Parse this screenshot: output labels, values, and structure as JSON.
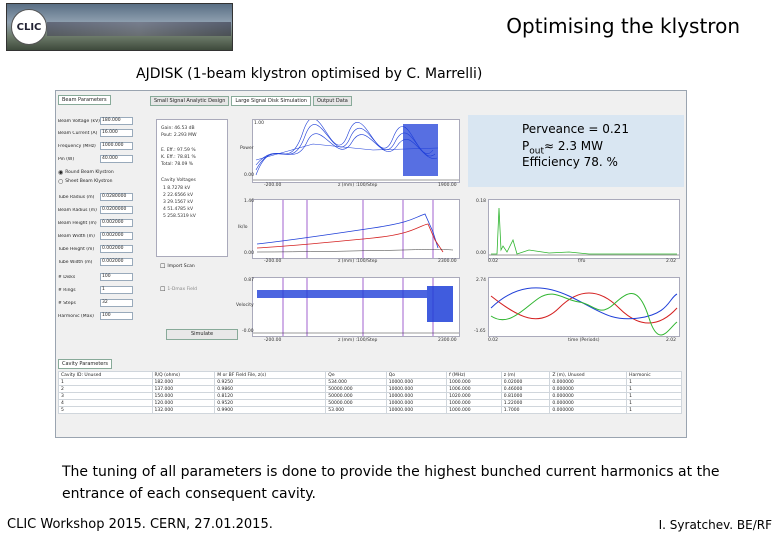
{
  "header": {
    "logo_text": "CLIC",
    "title": "Optimising the klystron"
  },
  "subtitle": "AJDISK (1-beam klystron optimised by C. Marrelli)",
  "app": {
    "left_tab": "Beam Parameters",
    "top_tabs": [
      "Small Signal Analytic Design",
      "Large Signal Disk Simulation",
      "Output Data"
    ],
    "fields": [
      {
        "label": "Beam Voltage (kV)",
        "value": "180.000"
      },
      {
        "label": "Beam Current (A)",
        "value": "16.000"
      },
      {
        "label": "Frequency (MHz)",
        "value": "1000.000"
      },
      {
        "label": "Pin (W)",
        "value": "40.000"
      },
      {
        "label": "Tube Radius (m)",
        "value": "0.0280000"
      },
      {
        "label": "Beam Radius (m)",
        "value": "0.0200000"
      },
      {
        "label": "Beam Height (m)",
        "value": "0.002000"
      },
      {
        "label": "Beam Width (m)",
        "value": "0.002000"
      },
      {
        "label": "Tube Height (m)",
        "value": "0.002000"
      },
      {
        "label": "Tube Width (m)",
        "value": "0.002000"
      },
      {
        "label": "# Disks",
        "value": "100"
      },
      {
        "label": "# Rings",
        "value": "1"
      },
      {
        "label": "# Steps",
        "value": "32"
      },
      {
        "label": "Harmonic (Max)",
        "value": "100"
      }
    ],
    "radio_round": "Round Beam Klystron",
    "radio_sheet": "Sheet Beam Klystron",
    "results": {
      "gain": "Gain: 46.53 dB",
      "pout": "Pout: 2.293 MW",
      "e_eff": "E. Eff.: 97.59 %",
      "k_eff": "K. Eff.: 78.81 %",
      "total": "Total: 78.09 %",
      "cavity_header": "Cavity Voltages",
      "voltages": [
        "1  8.7278 kV",
        "2  22.6566 kV",
        "3  29.1567 kV",
        "4  51.4785 kV",
        "5  258.5319 kV"
      ]
    },
    "checkbox_1": "Import Scan",
    "checkbox_2": "1-Dmax Field",
    "simulate_button": "Simulate",
    "plot_axes": {
      "p1": {
        "y_top": "1.00",
        "y_bot": "0.00",
        "x_left": "-200.00",
        "x_mid": "z (mm) :100/Step",
        "x_right": "1900.00"
      },
      "p2": {
        "y_top": "1.46",
        "y_bot": "0.00",
        "x_left": "-200.00",
        "x_mid": "z (mm) :100/Step",
        "x_right": "2300.00"
      },
      "p3": {
        "y_top": "0.87",
        "y_bot": "-0.00",
        "x_left": "-200.00",
        "x_mid": "z (mm) :100/Step",
        "x_right": "2300.00"
      },
      "p4": {
        "label": "Jamplitude: 5%/100",
        "y_top": "0.18",
        "y_bot": "0.00",
        "x_left": "0.02",
        "x_mid": "f/fo",
        "x_right": "2.02"
      },
      "p5": {
        "y_top": "2.74",
        "y_bot": "-1.65",
        "x_left": "0.02",
        "x_mid": "time (Periods)",
        "x_right": "2.02"
      }
    },
    "cavity_tab": "Cavity Parameters",
    "cavity_columns": [
      "Cavity ID: Unused",
      "R/Q (ohms)",
      "M or BF Field File, z(s)",
      "Qe",
      "Qo",
      "f (MHz)",
      "z (m)",
      "Z (m), Unused",
      "Harmonic"
    ],
    "cavity_rows": [
      [
        "1",
        "182.000",
        "0.9250",
        "534.000",
        "10000.000",
        "1000.000",
        "0.02000",
        "0.000000",
        "1"
      ],
      [
        "2",
        "137.000",
        "0.9860",
        "50000.000",
        "10000.000",
        "1006.000",
        "0.46000",
        "0.000000",
        "1"
      ],
      [
        "3",
        "150.000",
        "0.8120",
        "50000.000",
        "10000.000",
        "1020.000",
        "0.81000",
        "0.000000",
        "1"
      ],
      [
        "4",
        "120.000",
        "0.9520",
        "50000.000",
        "10000.000",
        "1000.000",
        "1.22000",
        "0.000000",
        "1"
      ],
      [
        "5",
        "132.000",
        "0.9900",
        "53.000",
        "10000.000",
        "1000.000",
        "1.7000",
        "0.000000",
        "1"
      ]
    ]
  },
  "perveance_box": {
    "line1": "Perveance = 0.21",
    "line2_main": "P",
    "line2_sub": "out",
    "line2_rest": "≈ 2.3 MW",
    "line3": "Efficiency 78. %"
  },
  "body_text": "The tuning of all parameters is done to provide the highest bunched current harmonics at the entrance of each consequent cavity.",
  "footer": {
    "left": "CLIC Workshop 2015. CERN, 27.01.2015.",
    "right": "I. Syratchev. BE/RF"
  },
  "colors": {
    "accent_blue": "#1f3fd8",
    "trace_red": "#d42020",
    "trace_green": "#2fb52f",
    "trace_purple": "#a060d0"
  }
}
